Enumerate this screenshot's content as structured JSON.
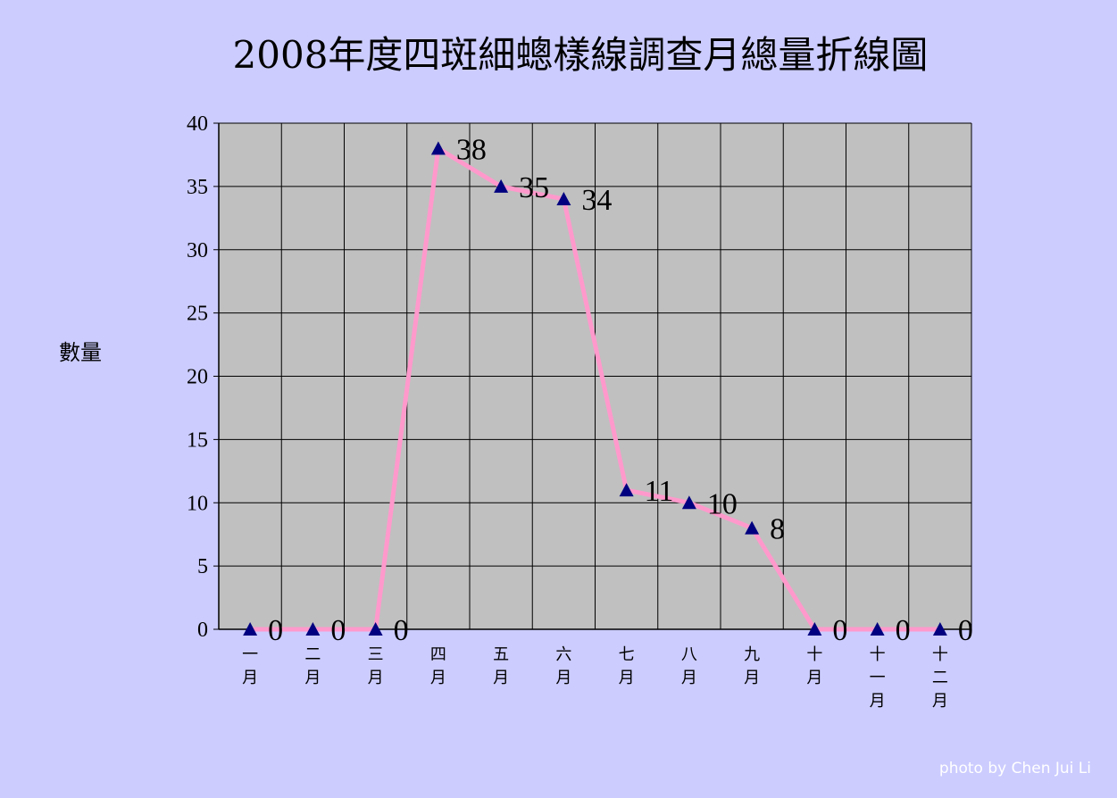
{
  "chart_data": {
    "type": "line",
    "title": "2008年度四斑細蟌樣線調查月總量折線圖",
    "ylabel": "數量",
    "xlabel": "",
    "categories": [
      "一月",
      "二月",
      "三月",
      "四月",
      "五月",
      "六月",
      "七月",
      "八月",
      "九月",
      "十月",
      "十一月",
      "十二月"
    ],
    "series": [
      {
        "values": [
          0,
          0,
          0,
          38,
          35,
          34,
          11,
          10,
          8,
          0,
          0,
          0
        ]
      }
    ],
    "ylim": [
      0,
      40
    ],
    "yticks": [
      0,
      5,
      10,
      15,
      20,
      25,
      30,
      35,
      40
    ],
    "grid": true,
    "legend": "none",
    "data_labels": true
  },
  "colors": {
    "background": "#ccccff",
    "plot_area": "#c0c0c0",
    "line": "#ff99cc",
    "marker": "#000080",
    "grid": "#000000"
  },
  "marker_shape": "triangle",
  "credit": "photo by Chen Jui Li"
}
